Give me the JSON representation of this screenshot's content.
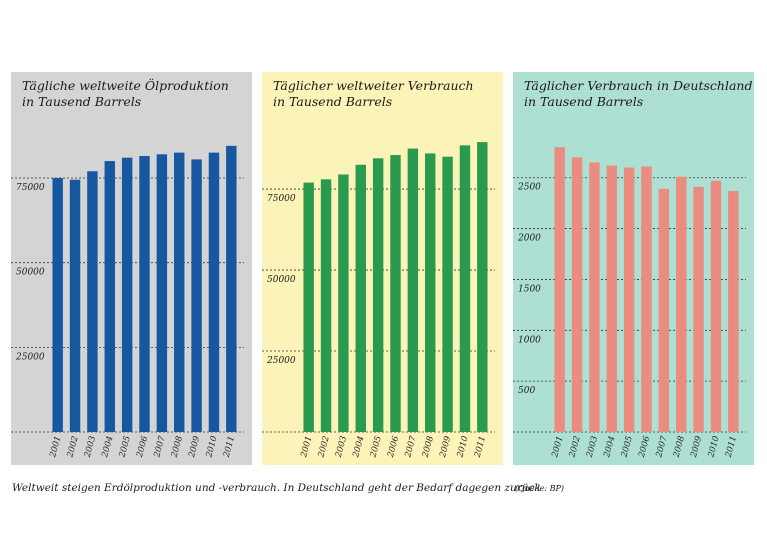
{
  "charts": [
    {
      "title_line1": "Tägliche weltweite Ölproduktion",
      "title_line2": "in Tausend Barrels",
      "bg": "#d4d4d4",
      "bar_color": "#1657a0"
    },
    {
      "title_line1": "Täglicher weltweiter Verbrauch",
      "title_line2": "in Tausend Barrels",
      "bg": "#fbf3b8",
      "bar_color": "#2a9a4e"
    },
    {
      "title_line1": "Täglicher Verbrauch in Deutschland",
      "title_line2": "in Tausend Barrels",
      "bg": "#aedfd3",
      "bar_color": "#ea8c80"
    }
  ],
  "caption": "Weltweit steigen Erdölproduktion und -verbrauch. In Deutschland geht der Bedarf dagegen zurück",
  "source": "(Quelle: BP)",
  "chart_data": [
    {
      "type": "bar",
      "title": "Tägliche weltweite Ölproduktion in Tausend Barrels",
      "categories": [
        "2001",
        "2002",
        "2003",
        "2004",
        "2005",
        "2006",
        "2007",
        "2008",
        "2009",
        "2010",
        "2011"
      ],
      "values": [
        75000,
        74500,
        77000,
        80000,
        81000,
        81500,
        82000,
        82500,
        80500,
        82500,
        84500
      ],
      "yticks": [
        25000,
        50000,
        75000
      ],
      "ylim": [
        0,
        88000
      ],
      "grid": true
    },
    {
      "type": "bar",
      "title": "Täglicher weltweiter Verbrauch in Tausend Barrels",
      "categories": [
        "2001",
        "2002",
        "2003",
        "2004",
        "2005",
        "2006",
        "2007",
        "2008",
        "2009",
        "2010",
        "2011"
      ],
      "values": [
        77000,
        78000,
        79500,
        82500,
        84500,
        85500,
        87500,
        86000,
        85000,
        88500,
        89500
      ],
      "yticks": [
        25000,
        50000,
        75000
      ],
      "ylim": [
        0,
        92000
      ],
      "grid": true
    },
    {
      "type": "bar",
      "title": "Täglicher Verbrauch in Deutschland in Tausend Barrels",
      "categories": [
        "2001",
        "2002",
        "2003",
        "2004",
        "2005",
        "2006",
        "2007",
        "2008",
        "2009",
        "2010",
        "2011"
      ],
      "values": [
        2800,
        2700,
        2650,
        2620,
        2600,
        2610,
        2390,
        2510,
        2410,
        2470,
        2370
      ],
      "yticks": [
        500,
        1000,
        1500,
        2000,
        2500
      ],
      "ylim": [
        0,
        2930
      ],
      "grid": true
    }
  ]
}
